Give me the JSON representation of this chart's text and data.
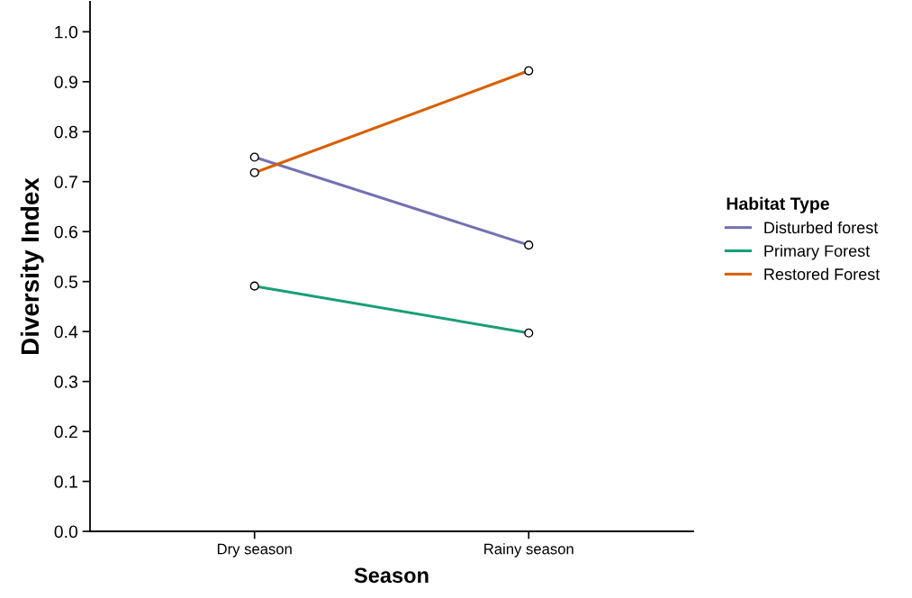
{
  "chart_data": {
    "type": "line",
    "xlabel": "Season",
    "ylabel": "Diversity Index",
    "legend_title": "Habitat Type",
    "categories": [
      "Dry season",
      "Rainy season"
    ],
    "series": [
      {
        "name": "Disturbed forest",
        "color": "#7570b3",
        "values": [
          0.749,
          0.573
        ]
      },
      {
        "name": "Primary Forest",
        "color": "#1b9e77",
        "values": [
          0.491,
          0.397
        ]
      },
      {
        "name": "Restored Forest",
        "color": "#d95f02",
        "values": [
          0.718,
          0.922
        ]
      }
    ],
    "ylim": [
      0,
      1.06
    ],
    "yticks": [
      {
        "value": 0,
        "label": "0.0"
      },
      0.1,
      0.2,
      0.3,
      0.4,
      0.5,
      0.6,
      0.7,
      0.8,
      0.9,
      {
        "value": 1,
        "label": "1.0"
      }
    ],
    "grid": false,
    "legend": "right",
    "marker": "circle",
    "line_style": "solid"
  }
}
